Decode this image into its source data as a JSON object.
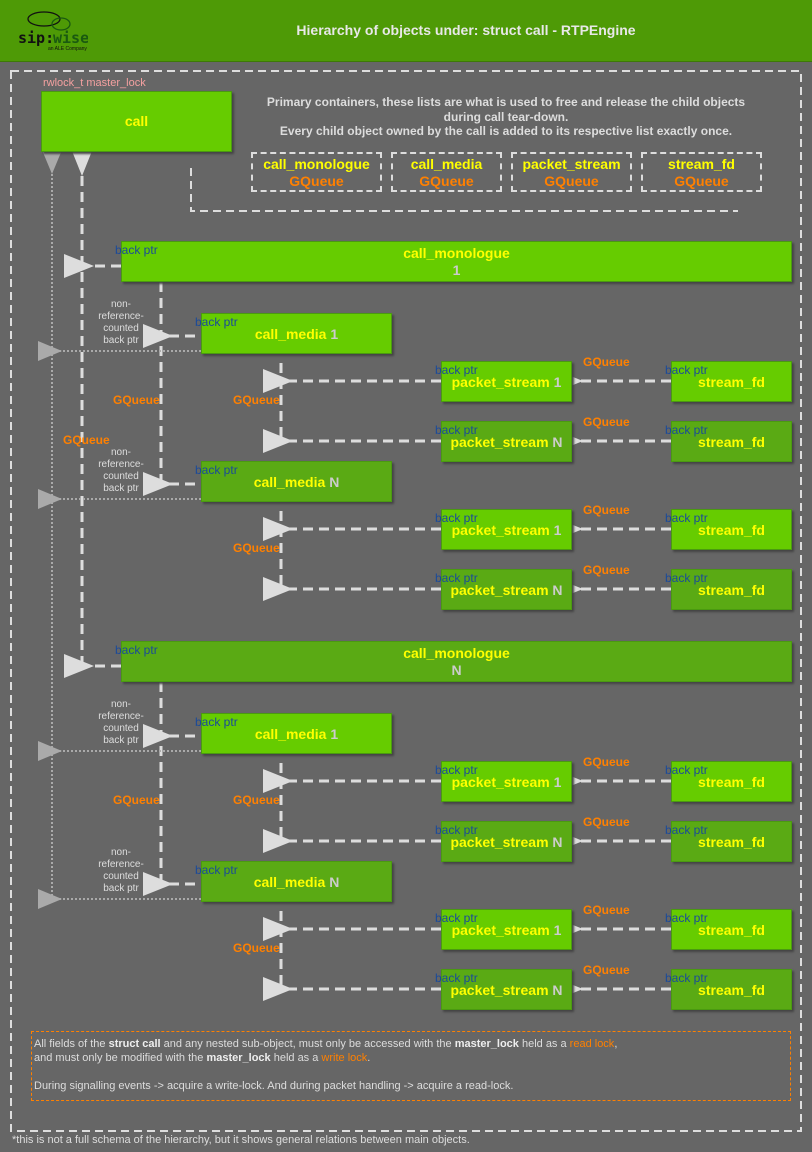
{
  "header": {
    "title": "Hierarchy of objects under: struct call - RTPEngine",
    "logo_text": "sip:wise",
    "logo_sub": "an ALE Company"
  },
  "call": {
    "lock_label": "rwlock_t master_lock",
    "name": "call"
  },
  "primary_text": [
    "Primary containers, these lists are what is used to free and release the child objects",
    "during call tear-down.",
    "Every child object owned by the call is added to its respective list exactly once."
  ],
  "containers": [
    {
      "name": "call_monologue",
      "type": "GQueue"
    },
    {
      "name": "call_media",
      "type": "GQueue"
    },
    {
      "name": "packet_stream",
      "type": "GQueue"
    },
    {
      "name": "stream_fd",
      "type": "GQueue"
    }
  ],
  "call_gqueue_label": "GQueue",
  "monologues": [
    {
      "name": "call_monologue",
      "index": "1",
      "back_ptr": "back ptr",
      "gqueue": "GQueue",
      "media": [
        {
          "name": "call_media",
          "index": "1",
          "back_ptr": "back ptr",
          "non_ref": "non-\nreference-\ncounted\nback ptr",
          "gqueue": "GQueue",
          "streams": [
            {
              "name": "packet_stream",
              "index": "1",
              "back_ptr": "back ptr",
              "gqueue": "GQueue",
              "fd": {
                "name": "stream_fd",
                "back_ptr": "back ptr"
              }
            },
            {
              "name": "packet_stream",
              "index": "N",
              "back_ptr": "back ptr",
              "gqueue": "GQueue",
              "fd": {
                "name": "stream_fd",
                "back_ptr": "back ptr"
              }
            }
          ]
        },
        {
          "name": "call_media",
          "index": "N",
          "back_ptr": "back ptr",
          "non_ref": "non-\nreference-\ncounted\nback ptr",
          "gqueue": "GQueue",
          "streams": [
            {
              "name": "packet_stream",
              "index": "1",
              "back_ptr": "back ptr",
              "gqueue": "GQueue",
              "fd": {
                "name": "stream_fd",
                "back_ptr": "back ptr"
              }
            },
            {
              "name": "packet_stream",
              "index": "N",
              "back_ptr": "back ptr",
              "gqueue": "GQueue",
              "fd": {
                "name": "stream_fd",
                "back_ptr": "back ptr"
              }
            }
          ]
        }
      ]
    },
    {
      "name": "call_monologue",
      "index": "N",
      "back_ptr": "back ptr",
      "gqueue": "GQueue",
      "media": [
        {
          "name": "call_media",
          "index": "1",
          "back_ptr": "back ptr",
          "non_ref": "non-\nreference-\ncounted\nback ptr",
          "gqueue": "GQueue",
          "streams": [
            {
              "name": "packet_stream",
              "index": "1",
              "back_ptr": "back ptr",
              "gqueue": "GQueue",
              "fd": {
                "name": "stream_fd",
                "back_ptr": "back ptr"
              }
            },
            {
              "name": "packet_stream",
              "index": "N",
              "back_ptr": "back ptr",
              "gqueue": "GQueue",
              "fd": {
                "name": "stream_fd",
                "back_ptr": "back ptr"
              }
            }
          ]
        },
        {
          "name": "call_media",
          "index": "N",
          "back_ptr": "back ptr",
          "non_ref": "non-\nreference-\ncounted\nback ptr",
          "gqueue": "GQueue",
          "streams": [
            {
              "name": "packet_stream",
              "index": "1",
              "back_ptr": "back ptr",
              "gqueue": "GQueue",
              "fd": {
                "name": "stream_fd",
                "back_ptr": "back ptr"
              }
            },
            {
              "name": "packet_stream",
              "index": "N",
              "back_ptr": "back ptr",
              "gqueue": "GQueue",
              "fd": {
                "name": "stream_fd",
                "back_ptr": "back ptr"
              }
            }
          ]
        }
      ]
    }
  ],
  "note": {
    "l1a": "All fields of the ",
    "l1b": "struct call",
    "l1c": " and any nested sub-object, must only be accessed with the ",
    "l1d": "master_lock",
    "l1e": " held as a ",
    "l1f": "read lock",
    "l1g": ",",
    "l2a": "and must only be modified with the ",
    "l2b": "master_lock",
    "l2c": " held as a ",
    "l2d": "write lock",
    "l2e": ".",
    "l3": "During signalling events -> acquire a write-lock. And during packet handling -> acquire a read-lock."
  },
  "footnote": "*this is not a full schema of the hierarchy, but it shows general relations between main objects.",
  "colors": {
    "header": "#4e9a06",
    "box": "#66cc00",
    "box_dark": "#5aaa14",
    "label_yellow": "#ffff00",
    "gqueue_orange": "#ff8000",
    "back_ptr_blue": "#1a4a9a",
    "background": "#666666"
  }
}
